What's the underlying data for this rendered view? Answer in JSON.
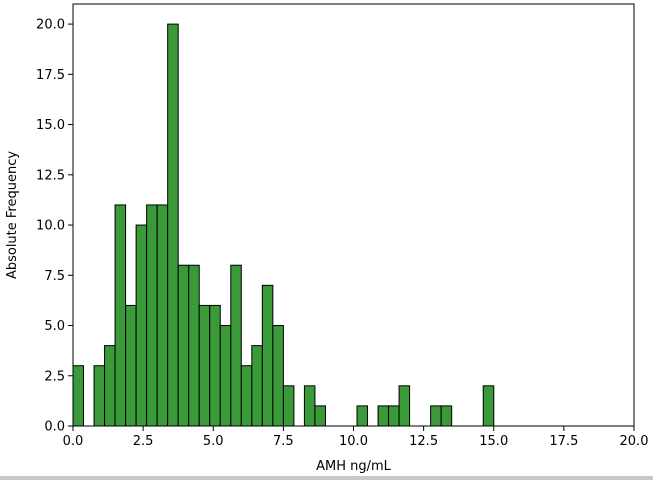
{
  "chart_data": {
    "type": "bar",
    "subtype": "histogram",
    "xlabel": "AMH ng/mL",
    "ylabel": "Absolute Frequency",
    "xlim": [
      0,
      20
    ],
    "ylim": [
      0,
      21
    ],
    "grid": false,
    "bar_color": "#3a9a3a",
    "edge_color": "#000000",
    "x_ticks": [
      "0.0",
      "2.5",
      "5.0",
      "7.5",
      "10.0",
      "12.5",
      "15.0",
      "17.5",
      "20.0"
    ],
    "y_ticks": [
      "0.0",
      "2.5",
      "5.0",
      "7.5",
      "10.0",
      "12.5",
      "15.0",
      "17.5",
      "20.0"
    ],
    "bins": [
      {
        "x0": 0.0,
        "x1": 0.375,
        "count": 3
      },
      {
        "x0": 0.75,
        "x1": 1.125,
        "count": 3
      },
      {
        "x0": 1.125,
        "x1": 1.5,
        "count": 4
      },
      {
        "x0": 1.5,
        "x1": 1.875,
        "count": 11
      },
      {
        "x0": 1.875,
        "x1": 2.25,
        "count": 6
      },
      {
        "x0": 2.25,
        "x1": 2.625,
        "count": 10
      },
      {
        "x0": 2.625,
        "x1": 3.0,
        "count": 11
      },
      {
        "x0": 3.0,
        "x1": 3.375,
        "count": 11
      },
      {
        "x0": 3.375,
        "x1": 3.75,
        "count": 20
      },
      {
        "x0": 3.75,
        "x1": 4.125,
        "count": 8
      },
      {
        "x0": 4.125,
        "x1": 4.5,
        "count": 8
      },
      {
        "x0": 4.5,
        "x1": 4.875,
        "count": 6
      },
      {
        "x0": 4.875,
        "x1": 5.25,
        "count": 6
      },
      {
        "x0": 5.25,
        "x1": 5.625,
        "count": 5
      },
      {
        "x0": 5.625,
        "x1": 6.0,
        "count": 8
      },
      {
        "x0": 6.0,
        "x1": 6.375,
        "count": 3
      },
      {
        "x0": 6.375,
        "x1": 6.75,
        "count": 4
      },
      {
        "x0": 6.75,
        "x1": 7.125,
        "count": 7
      },
      {
        "x0": 7.125,
        "x1": 7.5,
        "count": 5
      },
      {
        "x0": 7.5,
        "x1": 7.875,
        "count": 2
      },
      {
        "x0": 8.25,
        "x1": 8.625,
        "count": 2
      },
      {
        "x0": 8.625,
        "x1": 9.0,
        "count": 1
      },
      {
        "x0": 10.125,
        "x1": 10.5,
        "count": 1
      },
      {
        "x0": 10.875,
        "x1": 11.25,
        "count": 1
      },
      {
        "x0": 11.25,
        "x1": 11.625,
        "count": 1
      },
      {
        "x0": 11.625,
        "x1": 12.0,
        "count": 2
      },
      {
        "x0": 12.75,
        "x1": 13.125,
        "count": 1
      },
      {
        "x0": 13.125,
        "x1": 13.5,
        "count": 1
      },
      {
        "x0": 14.625,
        "x1": 15.0,
        "count": 2
      }
    ]
  }
}
